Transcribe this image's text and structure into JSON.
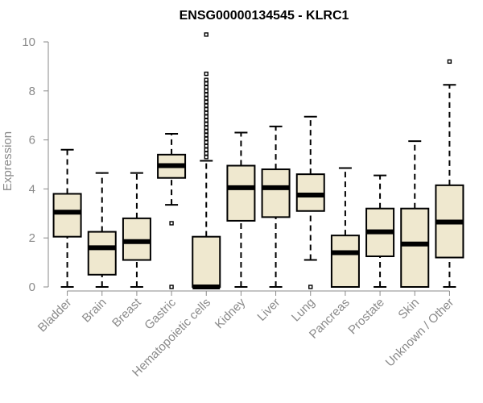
{
  "chart_data": {
    "type": "box",
    "title": "ENSG00000134545 - KLRC1",
    "ylabel": "Expression",
    "xlabel": "",
    "ylim": [
      0,
      10
    ],
    "yticks": [
      0,
      2,
      4,
      6,
      8,
      10
    ],
    "grid": false,
    "categories": [
      "Bladder",
      "Brain",
      "Breast",
      "Gastric",
      "Hematopoietic cells",
      "Kidney",
      "Liver",
      "Lung",
      "Pancreas",
      "Prostate",
      "Skin",
      "Unknown / Other"
    ],
    "boxes": [
      {
        "category": "Bladder",
        "whisker_low": 0.0,
        "q1": 2.05,
        "median": 3.05,
        "q3": 3.8,
        "whisker_high": 5.6,
        "outliers": []
      },
      {
        "category": "Brain",
        "whisker_low": 0.0,
        "q1": 0.5,
        "median": 1.6,
        "q3": 2.25,
        "whisker_high": 4.65,
        "outliers": []
      },
      {
        "category": "Breast",
        "whisker_low": 0.0,
        "q1": 1.1,
        "median": 1.85,
        "q3": 2.8,
        "whisker_high": 4.65,
        "outliers": []
      },
      {
        "category": "Gastric",
        "whisker_low": 3.35,
        "q1": 4.45,
        "median": 4.95,
        "q3": 5.4,
        "whisker_high": 6.25,
        "outliers": [
          0.0,
          2.6
        ]
      },
      {
        "category": "Hematopoietic cells",
        "whisker_low": 0.0,
        "q1": 0.0,
        "median": 0.0,
        "q3": 2.05,
        "whisker_high": 5.15,
        "outliers": [
          5.3,
          5.45,
          5.6,
          5.75,
          5.9,
          6.05,
          6.2,
          6.35,
          6.5,
          6.65,
          6.8,
          6.95,
          7.1,
          7.25,
          7.4,
          7.55,
          7.7,
          7.85,
          8.0,
          8.15,
          8.3,
          8.45,
          8.7,
          10.3
        ]
      },
      {
        "category": "Kidney",
        "whisker_low": 0.0,
        "q1": 2.7,
        "median": 4.05,
        "q3": 4.95,
        "whisker_high": 6.3,
        "outliers": []
      },
      {
        "category": "Liver",
        "whisker_low": 0.0,
        "q1": 2.85,
        "median": 4.05,
        "q3": 4.8,
        "whisker_high": 6.55,
        "outliers": []
      },
      {
        "category": "Lung",
        "whisker_low": 1.1,
        "q1": 3.1,
        "median": 3.75,
        "q3": 4.6,
        "whisker_high": 6.95,
        "outliers": [
          0.0
        ]
      },
      {
        "category": "Pancreas",
        "whisker_low": 0.0,
        "q1": 0.0,
        "median": 1.4,
        "q3": 2.1,
        "whisker_high": 4.85,
        "outliers": []
      },
      {
        "category": "Prostate",
        "whisker_low": 0.0,
        "q1": 1.25,
        "median": 2.25,
        "q3": 3.2,
        "whisker_high": 4.55,
        "outliers": []
      },
      {
        "category": "Skin",
        "whisker_low": 0.0,
        "q1": 0.0,
        "median": 1.75,
        "q3": 3.2,
        "whisker_high": 5.95,
        "outliers": []
      },
      {
        "category": "Unknown / Other",
        "whisker_low": 0.0,
        "q1": 1.2,
        "median": 2.65,
        "q3": 4.15,
        "whisker_high": 8.25,
        "outliers": [
          9.2
        ]
      }
    ]
  }
}
